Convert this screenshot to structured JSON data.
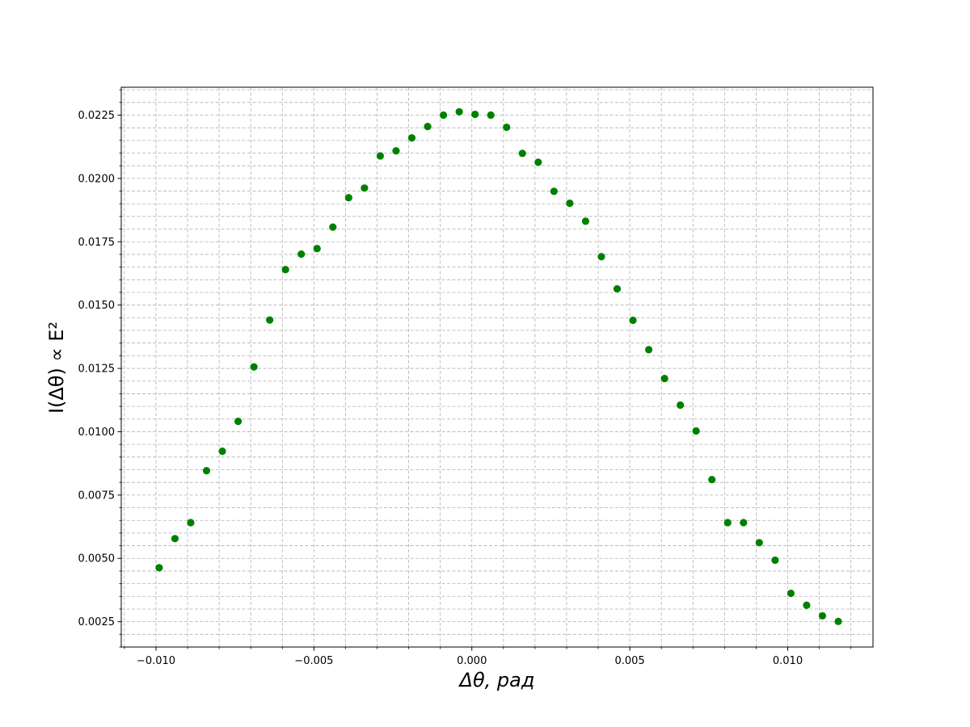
{
  "chart_data": {
    "type": "scatter",
    "title": "",
    "xlabel": "Δθ, рад",
    "ylabel": "I(Δθ) ∝ E²",
    "xlim": [
      -0.0111,
      0.0127
    ],
    "ylim": [
      0.0015,
      0.0236
    ],
    "xticks": [
      -0.01,
      -0.005,
      0.0,
      0.005,
      0.01
    ],
    "xtick_labels": [
      "−0.010",
      "−0.005",
      "0.000",
      "0.005",
      "0.010"
    ],
    "yticks": [
      0.0025,
      0.005,
      0.0075,
      0.01,
      0.0125,
      0.015,
      0.0175,
      0.02,
      0.0225
    ],
    "ytick_labels": [
      "0.0025",
      "0.0050",
      "0.0075",
      "0.0100",
      "0.0125",
      "0.0150",
      "0.0175",
      "0.0200",
      "0.0225"
    ],
    "grid": true,
    "marker_color": "#008000",
    "series": [
      {
        "points": [
          [
            -0.0099,
            0.00463
          ],
          [
            -0.0094,
            0.00578
          ],
          [
            -0.0089,
            0.00641
          ],
          [
            -0.0084,
            0.00846
          ],
          [
            -0.0079,
            0.00923
          ],
          [
            -0.0074,
            0.01041
          ],
          [
            -0.0069,
            0.01256
          ],
          [
            -0.0064,
            0.01441
          ],
          [
            -0.0059,
            0.0164
          ],
          [
            -0.0054,
            0.01701
          ],
          [
            -0.0049,
            0.01723
          ],
          [
            -0.0044,
            0.01808
          ],
          [
            -0.0039,
            0.01924
          ],
          [
            -0.0034,
            0.01962
          ],
          [
            -0.0029,
            0.02089
          ],
          [
            -0.0024,
            0.02109
          ],
          [
            -0.0019,
            0.0216
          ],
          [
            -0.0014,
            0.02205
          ],
          [
            -0.0009,
            0.0225
          ],
          [
            -0.0004,
            0.02263
          ],
          [
            0.0001,
            0.02253
          ],
          [
            0.0006,
            0.0225
          ],
          [
            0.0011,
            0.02202
          ],
          [
            0.0016,
            0.02099
          ],
          [
            0.0021,
            0.02064
          ],
          [
            0.0026,
            0.01949
          ],
          [
            0.0031,
            0.01902
          ],
          [
            0.0036,
            0.01831
          ],
          [
            0.0041,
            0.01691
          ],
          [
            0.0046,
            0.01564
          ],
          [
            0.0051,
            0.0144
          ],
          [
            0.0056,
            0.01324
          ],
          [
            0.0061,
            0.0121
          ],
          [
            0.0066,
            0.01105
          ],
          [
            0.0071,
            0.01003
          ],
          [
            0.0076,
            0.00811
          ],
          [
            0.0081,
            0.00641
          ],
          [
            0.0086,
            0.00641
          ],
          [
            0.0091,
            0.00562
          ],
          [
            0.0096,
            0.00493
          ],
          [
            0.0101,
            0.00362
          ],
          [
            0.0106,
            0.00315
          ],
          [
            0.0111,
            0.00273
          ],
          [
            0.0116,
            0.00251
          ]
        ]
      }
    ]
  }
}
